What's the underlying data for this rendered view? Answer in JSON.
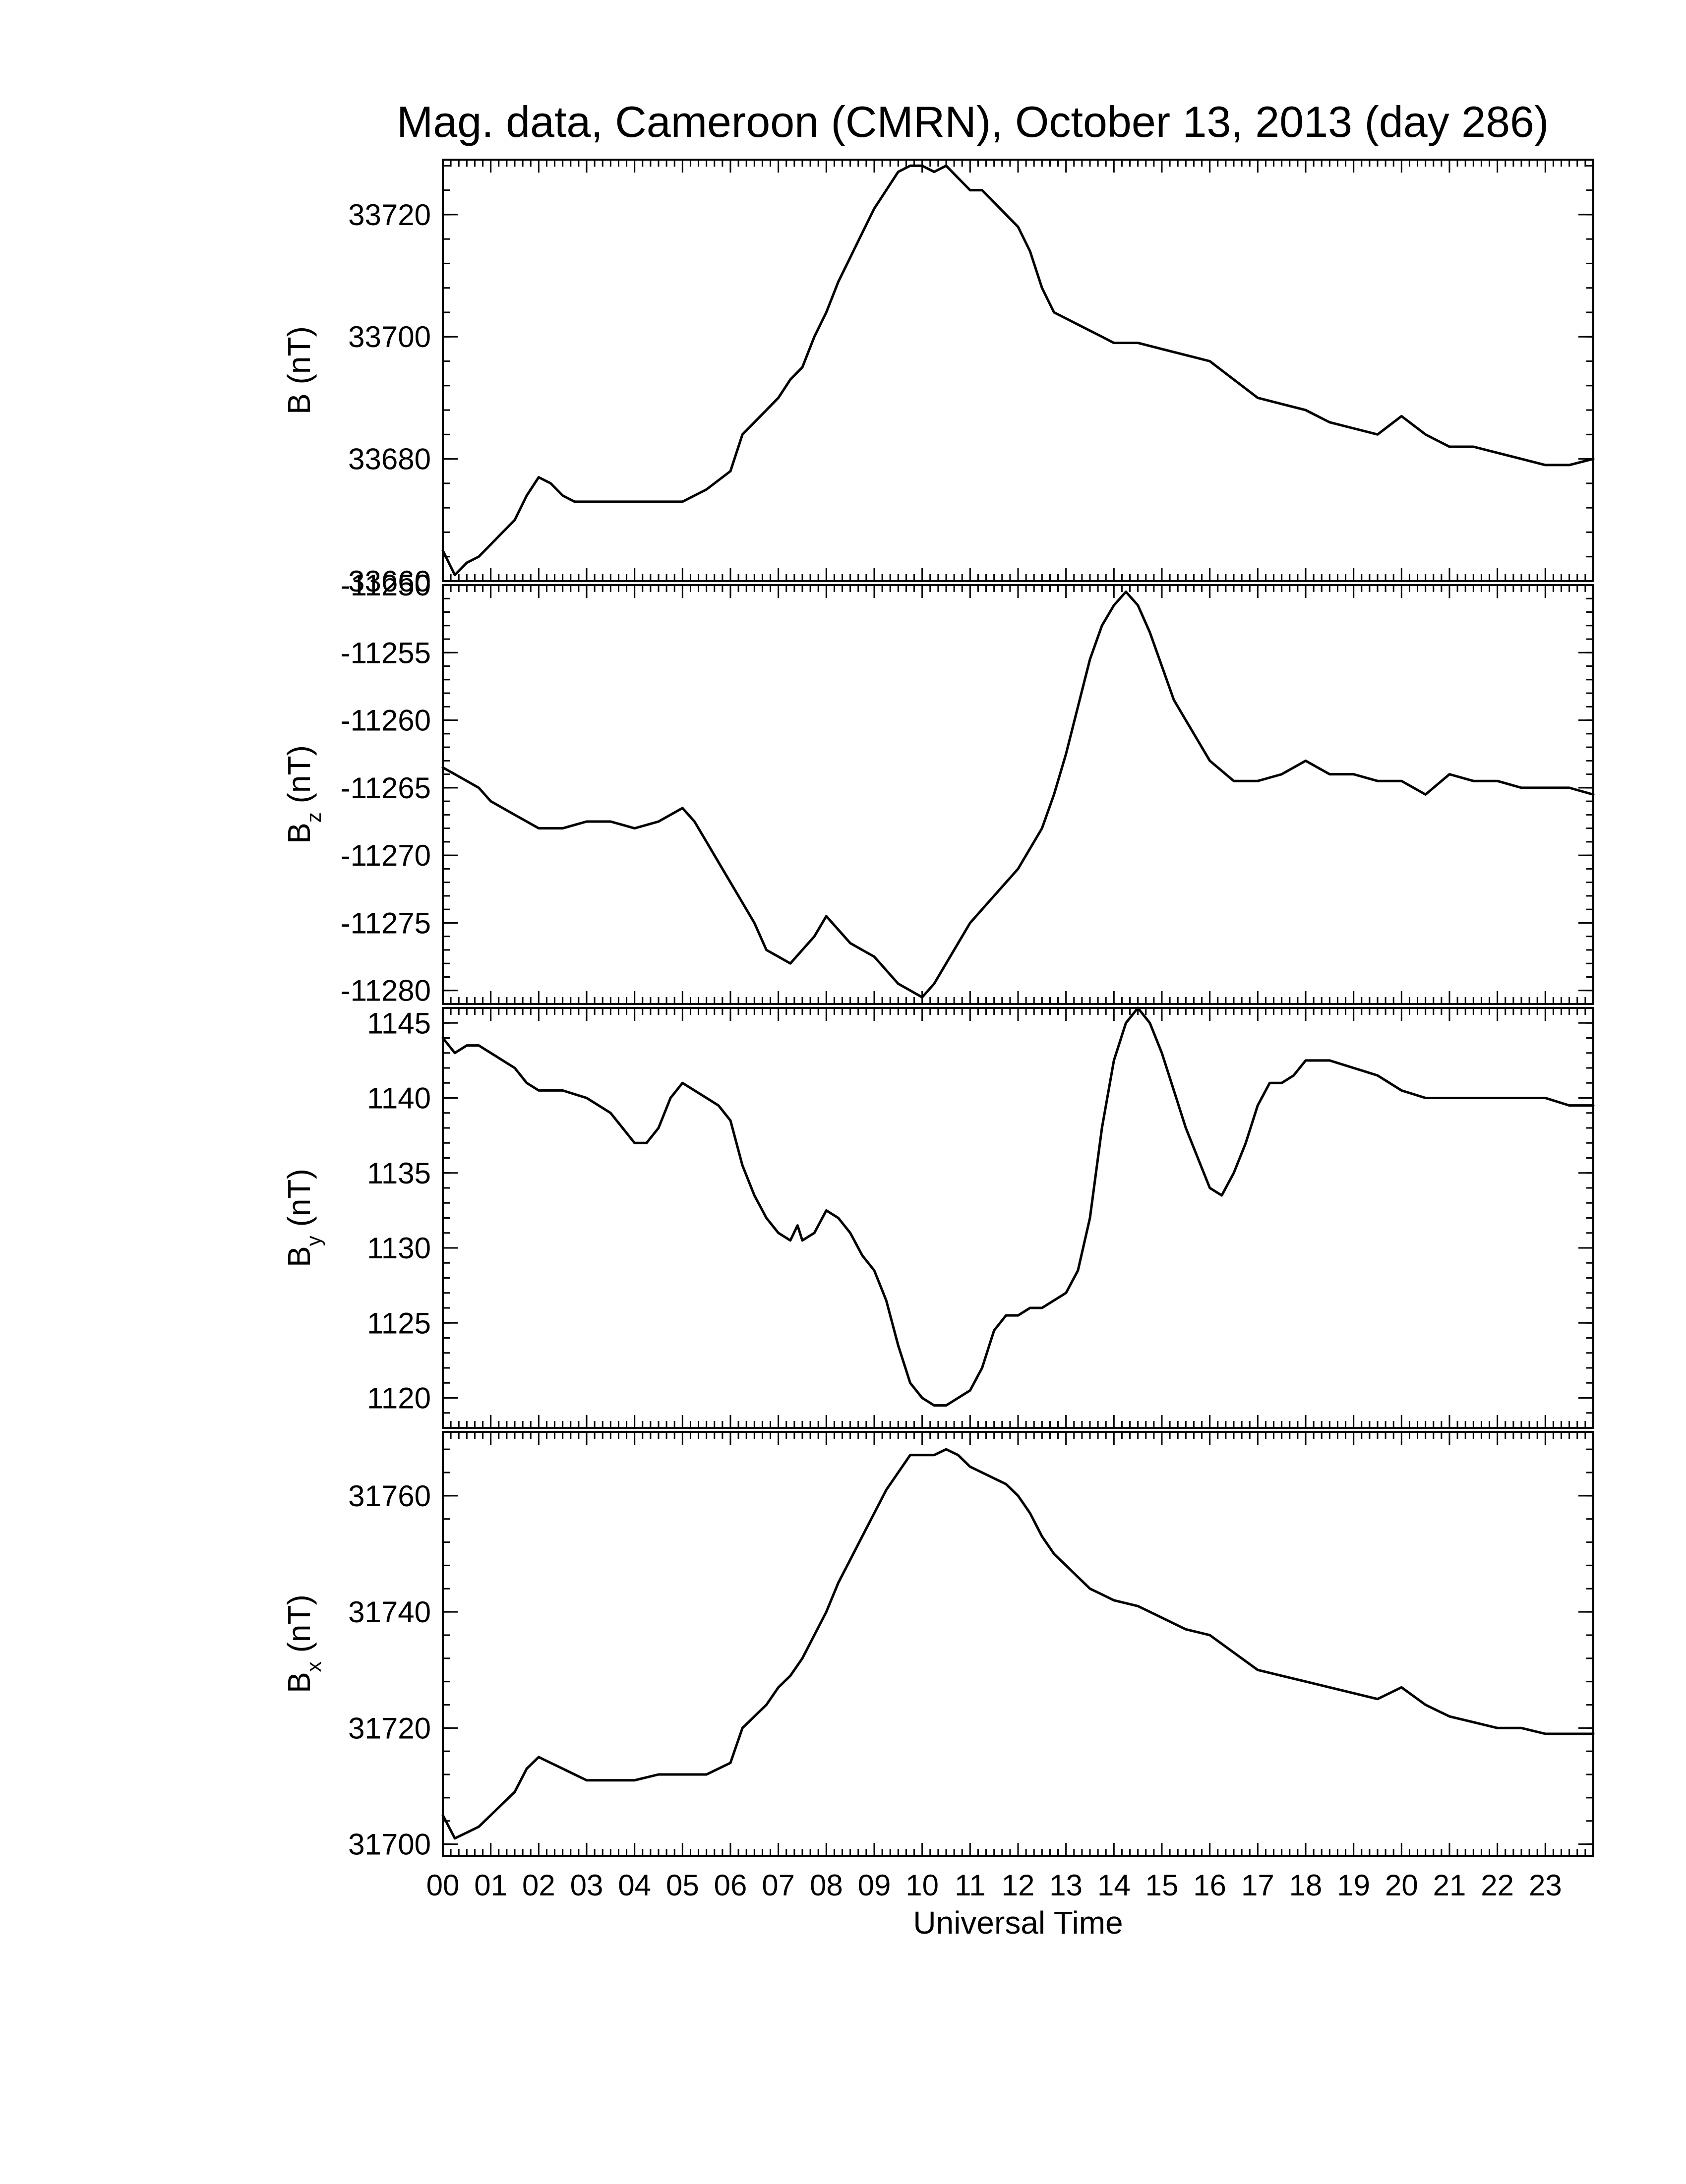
{
  "chart_data": {
    "type": "line",
    "title": "Mag. data, Cameroon (CMRN), October 13, 2013 (day 286)",
    "xlabel": "Universal Time",
    "x_tick_labels": [
      "00",
      "01",
      "02",
      "03",
      "04",
      "05",
      "06",
      "07",
      "08",
      "09",
      "10",
      "11",
      "12",
      "13",
      "14",
      "15",
      "16",
      "17",
      "18",
      "19",
      "20",
      "21",
      "22",
      "23"
    ],
    "xlim": [
      0,
      24
    ],
    "panels": [
      {
        "id": "B",
        "ylabel_main": "B",
        "ylabel_sub": "",
        "ylabel_unit": "(nT)",
        "ylim": [
          33660,
          33729
        ],
        "yticks": [
          33660,
          33680,
          33700,
          33720
        ],
        "x": [
          0,
          0.25,
          0.5,
          0.75,
          1,
          1.25,
          1.5,
          1.75,
          2,
          2.25,
          2.5,
          2.75,
          3,
          3.5,
          4,
          4.5,
          5,
          5.5,
          6,
          6.25,
          6.5,
          6.75,
          7,
          7.25,
          7.5,
          7.75,
          8,
          8.25,
          8.5,
          8.75,
          9,
          9.25,
          9.5,
          9.75,
          10,
          10.25,
          10.5,
          10.75,
          11,
          11.25,
          11.5,
          11.75,
          12,
          12.25,
          12.5,
          12.75,
          13,
          13.25,
          13.5,
          13.75,
          14,
          14.5,
          15,
          15.5,
          16,
          16.5,
          17,
          17.5,
          18,
          18.5,
          19,
          19.5,
          20,
          20.5,
          20.75,
          21,
          21.5,
          22,
          22.5,
          23,
          23.5,
          24
        ],
        "y": [
          33665,
          33661,
          33663,
          33664,
          33666,
          33668,
          33670,
          33674,
          33677,
          33676,
          33674,
          33673,
          33673,
          33673,
          33673,
          33673,
          33673,
          33675,
          33678,
          33684,
          33686,
          33688,
          33690,
          33693,
          33695,
          33700,
          33704,
          33709,
          33713,
          33717,
          33721,
          33724,
          33727,
          33728,
          33728,
          33727,
          33728,
          33726,
          33724,
          33724,
          33722,
          33720,
          33718,
          33714,
          33708,
          33704,
          33703,
          33702,
          33701,
          33700,
          33699,
          33699,
          33698,
          33697,
          33696,
          33693,
          33690,
          33689,
          33688,
          33686,
          33685,
          33684,
          33687,
          33684,
          33683,
          33682,
          33682,
          33681,
          33680,
          33679,
          33679,
          33680
        ]
      },
      {
        "id": "Bz",
        "ylabel_main": "B",
        "ylabel_sub": "z",
        "ylabel_unit": "(nT)",
        "ylim": [
          -11281,
          -11250
        ],
        "yticks": [
          -11280,
          -11275,
          -11270,
          -11265,
          -11260,
          -11255,
          -11250
        ],
        "x": [
          0,
          0.25,
          0.5,
          0.75,
          1,
          1.5,
          2,
          2.5,
          3,
          3.5,
          4,
          4.5,
          5,
          5.25,
          5.5,
          5.75,
          6,
          6.25,
          6.5,
          6.75,
          7,
          7.25,
          7.5,
          7.75,
          8,
          8.25,
          8.5,
          8.75,
          9,
          9.25,
          9.5,
          9.75,
          10,
          10.25,
          10.5,
          10.75,
          11,
          11.25,
          11.5,
          11.75,
          12,
          12.25,
          12.5,
          12.75,
          13,
          13.25,
          13.5,
          13.75,
          14,
          14.25,
          14.5,
          14.75,
          15,
          15.25,
          15.5,
          15.75,
          16,
          16.5,
          17,
          17.5,
          18,
          18.5,
          19,
          19.5,
          20,
          20.5,
          21,
          21.5,
          22,
          22.5,
          23,
          23.5,
          24
        ],
        "y": [
          -11263.5,
          -11264,
          -11264.5,
          -11265,
          -11266,
          -11267,
          -11268,
          -11268,
          -11267.5,
          -11267.5,
          -11268,
          -11267.5,
          -11266.5,
          -11267.5,
          -11269,
          -11270.5,
          -11272,
          -11273.5,
          -11275,
          -11277,
          -11277.5,
          -11278,
          -11277,
          -11276,
          -11274.5,
          -11275.5,
          -11276.5,
          -11277,
          -11277.5,
          -11278.5,
          -11279.5,
          -11280,
          -11280.5,
          -11279.5,
          -11278,
          -11276.5,
          -11275,
          -11274,
          -11273,
          -11272,
          -11271,
          -11269.5,
          -11268,
          -11265.5,
          -11262.5,
          -11259,
          -11255.5,
          -11253,
          -11251.5,
          -11250.5,
          -11251.5,
          -11253.5,
          -11256,
          -11258.5,
          -11260,
          -11261.5,
          -11263,
          -11264.5,
          -11264.5,
          -11264,
          -11263,
          -11264,
          -11264,
          -11264.5,
          -11264.5,
          -11265.5,
          -11264,
          -11264.5,
          -11264.5,
          -11265,
          -11265,
          -11265,
          -11265.5
        ]
      },
      {
        "id": "By",
        "ylabel_main": "B",
        "ylabel_sub": "y",
        "ylabel_unit": "(nT)",
        "ylim": [
          1118,
          1146
        ],
        "yticks": [
          1120,
          1125,
          1130,
          1135,
          1140,
          1145
        ],
        "x": [
          0,
          0.25,
          0.5,
          0.75,
          1,
          1.25,
          1.5,
          1.75,
          2,
          2.5,
          3,
          3.25,
          3.5,
          3.75,
          4,
          4.25,
          4.5,
          4.75,
          5,
          5.25,
          5.5,
          5.75,
          6,
          6.25,
          6.5,
          6.75,
          7,
          7.25,
          7.4,
          7.5,
          7.75,
          8,
          8.25,
          8.5,
          8.75,
          9,
          9.25,
          9.5,
          9.75,
          10,
          10.25,
          10.5,
          10.75,
          11,
          11.25,
          11.5,
          11.75,
          12,
          12.25,
          12.5,
          12.75,
          13,
          13.25,
          13.5,
          13.75,
          14,
          14.25,
          14.5,
          14.75,
          15,
          15.25,
          15.5,
          15.75,
          16,
          16.25,
          16.5,
          16.75,
          17,
          17.25,
          17.5,
          17.75,
          18,
          18.5,
          19,
          19.5,
          20,
          20.5,
          21,
          21.5,
          22,
          22.5,
          23,
          23.5,
          24
        ],
        "y": [
          1144,
          1143,
          1143.5,
          1143.5,
          1143,
          1142.5,
          1142,
          1141,
          1140.5,
          1140.5,
          1140,
          1139.5,
          1139,
          1138,
          1137,
          1137,
          1138,
          1140,
          1141,
          1140.5,
          1140,
          1139.5,
          1138.5,
          1135.5,
          1133.5,
          1132,
          1131,
          1130.5,
          1131.5,
          1130.5,
          1131,
          1132.5,
          1132,
          1131,
          1129.5,
          1128.5,
          1126.5,
          1123.5,
          1121,
          1120,
          1119.5,
          1119.5,
          1120,
          1120.5,
          1122,
          1124.5,
          1125.5,
          1125.5,
          1126,
          1126,
          1126.5,
          1127,
          1128.5,
          1132,
          1138,
          1142.5,
          1145,
          1146,
          1145,
          1143,
          1140.5,
          1138,
          1136,
          1134,
          1133.5,
          1135,
          1137,
          1139.5,
          1141,
          1141,
          1141.5,
          1142.5,
          1142.5,
          1142,
          1141.5,
          1140.5,
          1140,
          1140,
          1140,
          1140,
          1140,
          1140,
          1139.5,
          1139.5
        ]
      },
      {
        "id": "Bx",
        "ylabel_main": "B",
        "ylabel_sub": "x",
        "ylabel_unit": "(nT)",
        "ylim": [
          31698,
          31771
        ],
        "yticks": [
          31700,
          31720,
          31740,
          31760
        ],
        "x": [
          0,
          0.25,
          0.5,
          0.75,
          1,
          1.25,
          1.5,
          1.75,
          2,
          2.25,
          2.5,
          2.75,
          3,
          3.5,
          4,
          4.5,
          5,
          5.5,
          6,
          6.25,
          6.5,
          6.75,
          7,
          7.25,
          7.5,
          7.75,
          8,
          8.25,
          8.5,
          8.75,
          9,
          9.25,
          9.5,
          9.75,
          10,
          10.25,
          10.5,
          10.75,
          11,
          11.25,
          11.5,
          11.75,
          12,
          12.25,
          12.5,
          12.75,
          13,
          13.25,
          13.5,
          13.75,
          14,
          14.5,
          15,
          15.5,
          16,
          16.5,
          17,
          17.5,
          18,
          18.5,
          19,
          19.5,
          20,
          20.5,
          20.75,
          21,
          21.5,
          22,
          22.5,
          23,
          23.5,
          24
        ],
        "y": [
          31705,
          31701,
          31702,
          31703,
          31705,
          31707,
          31709,
          31713,
          31715,
          31714,
          31713,
          31712,
          31711,
          31711,
          31711,
          31712,
          31712,
          31712,
          31714,
          31720,
          31722,
          31724,
          31727,
          31729,
          31732,
          31736,
          31740,
          31745,
          31749,
          31753,
          31757,
          31761,
          31764,
          31767,
          31767,
          31767,
          31768,
          31767,
          31765,
          31764,
          31763,
          31762,
          31760,
          31757,
          31753,
          31750,
          31748,
          31746,
          31744,
          31743,
          31742,
          31741,
          31739,
          31737,
          31736,
          31733,
          31730,
          31729,
          31728,
          31727,
          31726,
          31725,
          31727,
          31724,
          31723,
          31722,
          31721,
          31720,
          31720,
          31719,
          31719,
          31719
        ]
      }
    ]
  }
}
